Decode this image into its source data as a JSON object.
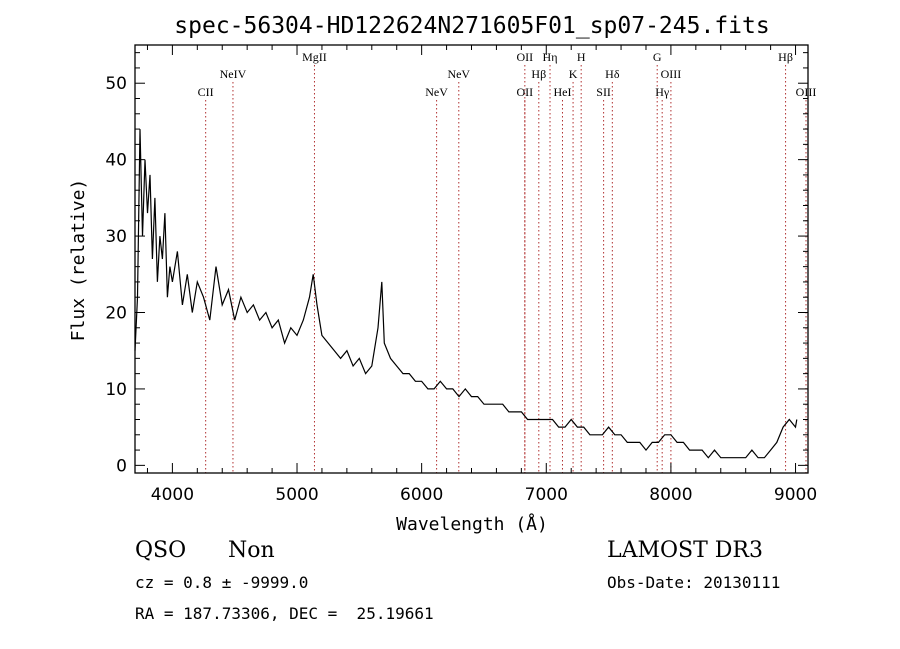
{
  "chart_data": {
    "type": "line",
    "title": "spec-56304-HD122624N271605F01_sp07-245.fits",
    "xlabel": "Wavelength (Å)",
    "ylabel": "Flux (relative)",
    "xlim": [
      3700,
      9100
    ],
    "ylim": [
      -1,
      55
    ],
    "x_ticks": [
      4000,
      5000,
      6000,
      7000,
      8000,
      9000
    ],
    "y_ticks": [
      0,
      10,
      20,
      30,
      40,
      50
    ],
    "x_tick_labels": [
      "4000",
      "5000",
      "6000",
      "7000",
      "8000",
      "9000"
    ],
    "y_tick_labels": [
      "0",
      "10",
      "20",
      "30",
      "40",
      "50"
    ],
    "grid": false,
    "series": [
      {
        "color": "#000000",
        "x": [
          3700,
          3720,
          3740,
          3760,
          3780,
          3800,
          3820,
          3840,
          3860,
          3880,
          3900,
          3920,
          3940,
          3960,
          3980,
          4000,
          4040,
          4080,
          4120,
          4160,
          4200,
          4250,
          4300,
          4350,
          4400,
          4450,
          4500,
          4550,
          4600,
          4650,
          4700,
          4750,
          4800,
          4850,
          4900,
          4950,
          5000,
          5050,
          5100,
          5130,
          5160,
          5200,
          5250,
          5300,
          5350,
          5400,
          5450,
          5500,
          5550,
          5600,
          5650,
          5680,
          5700,
          5750,
          5800,
          5850,
          5900,
          5950,
          6000,
          6050,
          6100,
          6150,
          6200,
          6250,
          6300,
          6350,
          6400,
          6450,
          6500,
          6550,
          6600,
          6650,
          6700,
          6750,
          6800,
          6850,
          6900,
          6950,
          7000,
          7050,
          7100,
          7150,
          7200,
          7250,
          7300,
          7350,
          7400,
          7450,
          7500,
          7550,
          7600,
          7650,
          7700,
          7750,
          7800,
          7850,
          7900,
          7950,
          8000,
          8050,
          8100,
          8150,
          8200,
          8250,
          8300,
          8350,
          8400,
          8450,
          8500,
          8550,
          8600,
          8650,
          8700,
          8750,
          8800,
          8850,
          8900,
          8950,
          9000,
          9010
        ],
        "y": [
          15,
          22,
          44,
          30,
          40,
          33,
          38,
          27,
          35,
          24,
          30,
          27,
          33,
          22,
          26,
          24,
          28,
          21,
          25,
          20,
          24,
          22,
          19,
          26,
          21,
          23,
          19,
          22,
          20,
          21,
          19,
          20,
          18,
          19,
          16,
          18,
          17,
          19,
          22,
          25,
          21,
          17,
          16,
          15,
          14,
          15,
          13,
          14,
          12,
          13,
          18,
          24,
          16,
          14,
          13,
          12,
          12,
          11,
          11,
          10,
          10,
          11,
          10,
          10,
          9,
          10,
          9,
          9,
          8,
          8,
          8,
          8,
          7,
          7,
          7,
          6,
          6,
          6,
          6,
          6,
          5,
          5,
          6,
          5,
          5,
          4,
          4,
          4,
          5,
          4,
          4,
          3,
          3,
          3,
          2,
          3,
          3,
          4,
          4,
          3,
          3,
          2,
          2,
          2,
          1,
          2,
          1,
          1,
          1,
          1,
          1,
          2,
          1,
          1,
          2,
          3,
          5,
          6,
          5,
          6
        ]
      }
    ],
    "lines": [
      {
        "label": "CII",
        "x": 4267,
        "tier": 3
      },
      {
        "label": "NeIV",
        "x": 4486,
        "tier": 2
      },
      {
        "label": "MgII",
        "x": 5140,
        "tier": 1
      },
      {
        "label": "NeV",
        "x": 6120,
        "tier": 3
      },
      {
        "label": "NeV",
        "x": 6298,
        "tier": 2
      },
      {
        "label": "OII",
        "x": 6828,
        "tier": 1
      },
      {
        "label": "OII",
        "x": 6828,
        "tier": 3
      },
      {
        "label": "Hη",
        "x": 7030,
        "tier": 1
      },
      {
        "label": "Hβ",
        "x": 6940,
        "tier": 2
      },
      {
        "label": "HeI",
        "x": 7130,
        "tier": 3
      },
      {
        "label": "K",
        "x": 7215,
        "tier": 2
      },
      {
        "label": "H",
        "x": 7280,
        "tier": 1
      },
      {
        "label": "Hδ",
        "x": 7530,
        "tier": 2
      },
      {
        "label": "SII",
        "x": 7460,
        "tier": 3
      },
      {
        "label": "G",
        "x": 7890,
        "tier": 1
      },
      {
        "label": "Hγ",
        "x": 7930,
        "tier": 3
      },
      {
        "label": "OIII",
        "x": 8000,
        "tier": 2
      },
      {
        "label": "Hβ",
        "x": 8920,
        "tier": 1
      },
      {
        "label": "OIII",
        "x": 9100,
        "tier": 3
      }
    ]
  },
  "info": {
    "class": "QSO",
    "subclass": "Non",
    "survey": "LAMOST DR3",
    "cz": "cz = 0.8 ± -9999.0",
    "obs_date": "Obs-Date: 20130111",
    "coords": "RA = 187.73306, DEC =  25.19661"
  }
}
